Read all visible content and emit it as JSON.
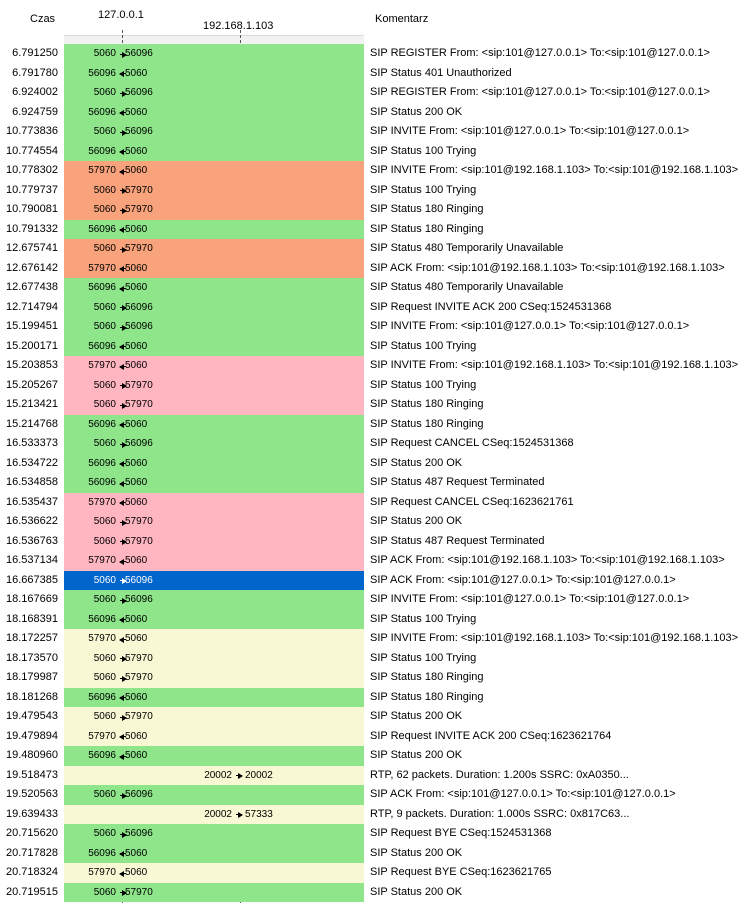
{
  "header": {
    "time_label": "Czas",
    "host1": "127.0.0.1",
    "host2": "192.168.1.103",
    "comment_label": "Komentarz"
  },
  "colors": {
    "green": "#8ee58a",
    "orange": "#f9a37d",
    "pink": "#ffb6c1",
    "yellow": "#f8f8d4",
    "selected": "#0066cc"
  },
  "rows": [
    {
      "time": "6.791250",
      "left": "5060",
      "right": "56096",
      "dir": "right",
      "comment": "SIP REGISTER From: <sip:101@127.0.0.1> To:<sip:101@127.0.0.1>",
      "color": "green"
    },
    {
      "time": "6.791780",
      "left": "56096",
      "right": "5060",
      "dir": "left",
      "comment": "SIP Status 401 Unauthorized",
      "color": "green"
    },
    {
      "time": "6.924002",
      "left": "5060",
      "right": "56096",
      "dir": "right",
      "comment": "SIP REGISTER From: <sip:101@127.0.0.1> To:<sip:101@127.0.0.1>",
      "color": "green"
    },
    {
      "time": "6.924759",
      "left": "56096",
      "right": "5060",
      "dir": "left",
      "comment": "SIP Status 200 OK",
      "color": "green"
    },
    {
      "time": "10.773836",
      "left": "5060",
      "right": "56096",
      "dir": "right",
      "comment": "SIP INVITE From: <sip:101@127.0.0.1> To:<sip:101@127.0.0.1>",
      "color": "green"
    },
    {
      "time": "10.774554",
      "left": "56096",
      "right": "5060",
      "dir": "left",
      "comment": "SIP Status 100 Trying",
      "color": "green"
    },
    {
      "time": "10.778302",
      "left": "57970",
      "right": "5060",
      "dir": "left",
      "comment": "SIP INVITE From: <sip:101@192.168.1.103> To:<sip:101@192.168.1.103>",
      "color": "orange"
    },
    {
      "time": "10.779737",
      "left": "5060",
      "right": "57970",
      "dir": "right",
      "comment": "SIP Status 100 Trying",
      "color": "orange"
    },
    {
      "time": "10.790081",
      "left": "5060",
      "right": "57970",
      "dir": "right",
      "comment": "SIP Status 180 Ringing",
      "color": "orange"
    },
    {
      "time": "10.791332",
      "left": "56096",
      "right": "5060",
      "dir": "left",
      "comment": "SIP Status 180 Ringing",
      "color": "green"
    },
    {
      "time": "12.675741",
      "left": "5060",
      "right": "57970",
      "dir": "right",
      "comment": "SIP Status 480 Temporarily Unavailable",
      "color": "orange"
    },
    {
      "time": "12.676142",
      "left": "57970",
      "right": "5060",
      "dir": "left",
      "comment": "SIP ACK From: <sip:101@192.168.1.103> To:<sip:101@192.168.1.103>",
      "color": "orange"
    },
    {
      "time": "12.677438",
      "left": "56096",
      "right": "5060",
      "dir": "left",
      "comment": "SIP Status 480 Temporarily Unavailable",
      "color": "green"
    },
    {
      "time": "12.714794",
      "left": "5060",
      "right": "56096",
      "dir": "right",
      "comment": "SIP Request INVITE ACK 200 CSeq:1524531368",
      "color": "green"
    },
    {
      "time": "15.199451",
      "left": "5060",
      "right": "56096",
      "dir": "right",
      "comment": "SIP INVITE From: <sip:101@127.0.0.1> To:<sip:101@127.0.0.1>",
      "color": "green"
    },
    {
      "time": "15.200171",
      "left": "56096",
      "right": "5060",
      "dir": "left",
      "comment": "SIP Status 100 Trying",
      "color": "green"
    },
    {
      "time": "15.203853",
      "left": "57970",
      "right": "5060",
      "dir": "left",
      "comment": "SIP INVITE From: <sip:101@192.168.1.103> To:<sip:101@192.168.1.103>",
      "color": "pink"
    },
    {
      "time": "15.205267",
      "left": "5060",
      "right": "57970",
      "dir": "right",
      "comment": "SIP Status 100 Trying",
      "color": "pink"
    },
    {
      "time": "15.213421",
      "left": "5060",
      "right": "57970",
      "dir": "right",
      "comment": "SIP Status 180 Ringing",
      "color": "pink"
    },
    {
      "time": "15.214768",
      "left": "56096",
      "right": "5060",
      "dir": "left",
      "comment": "SIP Status 180 Ringing",
      "color": "green"
    },
    {
      "time": "16.533373",
      "left": "5060",
      "right": "56096",
      "dir": "right",
      "comment": "SIP Request CANCEL CSeq:1524531368",
      "color": "green"
    },
    {
      "time": "16.534722",
      "left": "56096",
      "right": "5060",
      "dir": "left",
      "comment": "SIP Status 200 OK",
      "color": "green"
    },
    {
      "time": "16.534858",
      "left": "56096",
      "right": "5060",
      "dir": "left",
      "comment": "SIP Status 487 Request Terminated",
      "color": "green"
    },
    {
      "time": "16.535437",
      "left": "57970",
      "right": "5060",
      "dir": "left",
      "comment": "SIP Request CANCEL CSeq:1623621761",
      "color": "pink"
    },
    {
      "time": "16.536622",
      "left": "5060",
      "right": "57970",
      "dir": "right",
      "comment": "SIP Status 200 OK",
      "color": "pink"
    },
    {
      "time": "16.536763",
      "left": "5060",
      "right": "57970",
      "dir": "right",
      "comment": "SIP Status 487 Request Terminated",
      "color": "pink"
    },
    {
      "time": "16.537134",
      "left": "57970",
      "right": "5060",
      "dir": "left",
      "comment": "SIP ACK From: <sip:101@192.168.1.103> To:<sip:101@192.168.1.103>",
      "color": "pink"
    },
    {
      "time": "16.667385",
      "left": "5060",
      "right": "56096",
      "dir": "right",
      "comment": "SIP ACK From: <sip:101@127.0.0.1> To:<sip:101@127.0.0.1>",
      "color": "selected"
    },
    {
      "time": "18.167669",
      "left": "5060",
      "right": "56096",
      "dir": "right",
      "comment": "SIP INVITE From: <sip:101@127.0.0.1> To:<sip:101@127.0.0.1>",
      "color": "green"
    },
    {
      "time": "18.168391",
      "left": "56096",
      "right": "5060",
      "dir": "left",
      "comment": "SIP Status 100 Trying",
      "color": "green"
    },
    {
      "time": "18.172257",
      "left": "57970",
      "right": "5060",
      "dir": "left",
      "comment": "SIP INVITE From: <sip:101@192.168.1.103> To:<sip:101@192.168.1.103>",
      "color": "yellow"
    },
    {
      "time": "18.173570",
      "left": "5060",
      "right": "57970",
      "dir": "right",
      "comment": "SIP Status 100 Trying",
      "color": "yellow"
    },
    {
      "time": "18.179987",
      "left": "5060",
      "right": "57970",
      "dir": "right",
      "comment": "SIP Status 180 Ringing",
      "color": "yellow"
    },
    {
      "time": "18.181268",
      "left": "56096",
      "right": "5060",
      "dir": "left",
      "comment": "SIP Status 180 Ringing",
      "color": "green"
    },
    {
      "time": "19.479543",
      "left": "5060",
      "right": "57970",
      "dir": "right",
      "comment": "SIP Status 200 OK",
      "color": "yellow"
    },
    {
      "time": "19.479894",
      "left": "57970",
      "right": "5060",
      "dir": "left",
      "comment": "SIP Request INVITE ACK 200 CSeq:1623621764",
      "color": "yellow"
    },
    {
      "time": "19.480960",
      "left": "56096",
      "right": "5060",
      "dir": "left",
      "comment": "SIP Status 200 OK",
      "color": "green"
    },
    {
      "time": "19.518473",
      "left": "20002",
      "right": "20002",
      "dir": "right",
      "span": "rtp",
      "comment": "RTP, 62 packets. Duration: 1.200s SSRC: 0xA0350...",
      "color": "yellow"
    },
    {
      "time": "19.520563",
      "left": "5060",
      "right": "56096",
      "dir": "right",
      "comment": "SIP ACK From: <sip:101@127.0.0.1> To:<sip:101@127.0.0.1>",
      "color": "green"
    },
    {
      "time": "19.639433",
      "left": "20002",
      "right": "57333",
      "dir": "right",
      "span": "rtp",
      "comment": "RTP, 9 packets. Duration: 1.000s SSRC: 0x817C63...",
      "color": "yellow"
    },
    {
      "time": "20.715620",
      "left": "5060",
      "right": "56096",
      "dir": "right",
      "comment": "SIP Request BYE CSeq:1524531368",
      "color": "green"
    },
    {
      "time": "20.717828",
      "left": "56096",
      "right": "5060",
      "dir": "left",
      "comment": "SIP Status 200 OK",
      "color": "green"
    },
    {
      "time": "20.718324",
      "left": "57970",
      "right": "5060",
      "dir": "left",
      "comment": "SIP Request BYE CSeq:1623621765",
      "color": "yellow"
    },
    {
      "time": "20.719515",
      "left": "5060",
      "right": "57970",
      "dir": "right",
      "comment": "SIP Status 200 OK",
      "color": "green"
    }
  ]
}
